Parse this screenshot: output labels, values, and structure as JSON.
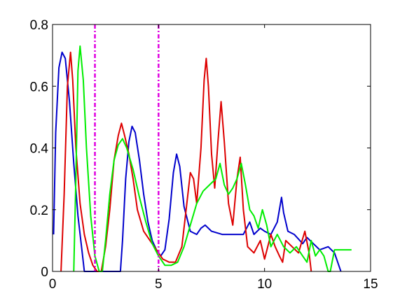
{
  "chart_data": {
    "type": "line",
    "xlim": [
      0,
      15
    ],
    "ylim": [
      0,
      0.8
    ],
    "xticks": [
      0,
      5,
      10,
      15
    ],
    "yticks": [
      0,
      0.2,
      0.4,
      0.6,
      0.8
    ],
    "xtick_labels": [
      "0",
      "5",
      "10",
      "15"
    ],
    "ytick_labels": [
      "0",
      "0.2",
      "0.4",
      "0.6",
      "0.8"
    ],
    "ytick_side": "both",
    "grid": false,
    "legend": "none",
    "vertical_markers": [
      {
        "x": 2,
        "color": "#e000e0",
        "style": "dash-dot"
      },
      {
        "x": 5,
        "color": "#e000e0",
        "style": "dash-dot"
      }
    ],
    "series": [
      {
        "color": "#0000cc",
        "points": [
          [
            0.05,
            0.12
          ],
          [
            0.15,
            0.45
          ],
          [
            0.3,
            0.66
          ],
          [
            0.45,
            0.71
          ],
          [
            0.6,
            0.69
          ],
          [
            0.8,
            0.55
          ],
          [
            1.0,
            0.35
          ],
          [
            1.2,
            0.18
          ],
          [
            1.4,
            0.06
          ],
          [
            1.5,
            0.0
          ],
          [
            3.2,
            0.0
          ],
          [
            3.3,
            0.1
          ],
          [
            3.45,
            0.3
          ],
          [
            3.6,
            0.42
          ],
          [
            3.75,
            0.47
          ],
          [
            3.9,
            0.45
          ],
          [
            4.1,
            0.36
          ],
          [
            4.3,
            0.25
          ],
          [
            4.5,
            0.16
          ],
          [
            4.7,
            0.1
          ],
          [
            4.9,
            0.07
          ],
          [
            5.1,
            0.05
          ],
          [
            5.3,
            0.07
          ],
          [
            5.5,
            0.17
          ],
          [
            5.7,
            0.32
          ],
          [
            5.85,
            0.38
          ],
          [
            6.0,
            0.34
          ],
          [
            6.2,
            0.21
          ],
          [
            6.5,
            0.13
          ],
          [
            6.8,
            0.12
          ],
          [
            7.0,
            0.14
          ],
          [
            7.2,
            0.15
          ],
          [
            7.5,
            0.13
          ],
          [
            8.0,
            0.12
          ],
          [
            8.5,
            0.12
          ],
          [
            9.0,
            0.12
          ],
          [
            9.3,
            0.16
          ],
          [
            9.5,
            0.12
          ],
          [
            9.8,
            0.14
          ],
          [
            10.0,
            0.13
          ],
          [
            10.3,
            0.12
          ],
          [
            10.6,
            0.16
          ],
          [
            10.8,
            0.24
          ],
          [
            10.9,
            0.19
          ],
          [
            11.1,
            0.13
          ],
          [
            11.4,
            0.12
          ],
          [
            11.8,
            0.09
          ],
          [
            12.0,
            0.11
          ],
          [
            12.3,
            0.09
          ],
          [
            12.6,
            0.07
          ],
          [
            13.0,
            0.08
          ],
          [
            13.3,
            0.06
          ],
          [
            13.6,
            0.0
          ]
        ]
      },
      {
        "color": "#dd0000",
        "points": [
          [
            0.4,
            0.0
          ],
          [
            0.55,
            0.25
          ],
          [
            0.7,
            0.6
          ],
          [
            0.85,
            0.71
          ],
          [
            0.95,
            0.62
          ],
          [
            1.1,
            0.4
          ],
          [
            1.3,
            0.22
          ],
          [
            1.5,
            0.12
          ],
          [
            1.7,
            0.06
          ],
          [
            1.9,
            0.02
          ],
          [
            2.1,
            0.0
          ],
          [
            2.3,
            0.0
          ],
          [
            2.5,
            0.08
          ],
          [
            2.7,
            0.2
          ],
          [
            2.9,
            0.36
          ],
          [
            3.1,
            0.44
          ],
          [
            3.25,
            0.48
          ],
          [
            3.4,
            0.44
          ],
          [
            3.6,
            0.38
          ],
          [
            3.8,
            0.3
          ],
          [
            4.0,
            0.2
          ],
          [
            4.3,
            0.13
          ],
          [
            4.6,
            0.1
          ],
          [
            4.9,
            0.07
          ],
          [
            5.2,
            0.04
          ],
          [
            5.5,
            0.03
          ],
          [
            5.8,
            0.03
          ],
          [
            6.1,
            0.08
          ],
          [
            6.3,
            0.2
          ],
          [
            6.5,
            0.32
          ],
          [
            6.65,
            0.3
          ],
          [
            6.8,
            0.22
          ],
          [
            7.0,
            0.4
          ],
          [
            7.15,
            0.62
          ],
          [
            7.25,
            0.69
          ],
          [
            7.35,
            0.6
          ],
          [
            7.5,
            0.38
          ],
          [
            7.65,
            0.27
          ],
          [
            7.8,
            0.42
          ],
          [
            7.95,
            0.55
          ],
          [
            8.1,
            0.42
          ],
          [
            8.3,
            0.22
          ],
          [
            8.5,
            0.15
          ],
          [
            8.7,
            0.3
          ],
          [
            8.85,
            0.37
          ],
          [
            9.0,
            0.2
          ],
          [
            9.2,
            0.08
          ],
          [
            9.5,
            0.06
          ],
          [
            9.8,
            0.1
          ],
          [
            10.0,
            0.04
          ],
          [
            10.3,
            0.12
          ],
          [
            10.5,
            0.08
          ],
          [
            10.7,
            0.05
          ],
          [
            10.85,
            0.03
          ],
          [
            11.0,
            0.1
          ],
          [
            11.3,
            0.08
          ],
          [
            11.6,
            0.06
          ],
          [
            11.9,
            0.13
          ],
          [
            12.1,
            0.06
          ],
          [
            12.2,
            0.0
          ]
        ]
      },
      {
        "color": "#00ee00",
        "points": [
          [
            1.0,
            0.0
          ],
          [
            1.1,
            0.3
          ],
          [
            1.2,
            0.65
          ],
          [
            1.3,
            0.73
          ],
          [
            1.45,
            0.62
          ],
          [
            1.6,
            0.4
          ],
          [
            1.8,
            0.18
          ],
          [
            2.0,
            0.05
          ],
          [
            2.2,
            0.0
          ],
          [
            2.35,
            0.0
          ],
          [
            2.5,
            0.1
          ],
          [
            2.7,
            0.25
          ],
          [
            2.9,
            0.36
          ],
          [
            3.1,
            0.41
          ],
          [
            3.3,
            0.43
          ],
          [
            3.5,
            0.4
          ],
          [
            3.8,
            0.33
          ],
          [
            4.1,
            0.24
          ],
          [
            4.4,
            0.16
          ],
          [
            4.7,
            0.09
          ],
          [
            5.0,
            0.05
          ],
          [
            5.3,
            0.02
          ],
          [
            5.6,
            0.02
          ],
          [
            5.9,
            0.03
          ],
          [
            6.2,
            0.08
          ],
          [
            6.5,
            0.15
          ],
          [
            6.8,
            0.22
          ],
          [
            7.1,
            0.26
          ],
          [
            7.4,
            0.28
          ],
          [
            7.7,
            0.3
          ],
          [
            7.9,
            0.35
          ],
          [
            8.1,
            0.28
          ],
          [
            8.3,
            0.25
          ],
          [
            8.5,
            0.27
          ],
          [
            8.7,
            0.3
          ],
          [
            8.9,
            0.35
          ],
          [
            9.1,
            0.28
          ],
          [
            9.3,
            0.2
          ],
          [
            9.5,
            0.18
          ],
          [
            9.7,
            0.14
          ],
          [
            9.9,
            0.2
          ],
          [
            10.1,
            0.15
          ],
          [
            10.3,
            0.08
          ],
          [
            10.6,
            0.12
          ],
          [
            10.9,
            0.08
          ],
          [
            11.2,
            0.06
          ],
          [
            11.5,
            0.08
          ],
          [
            11.8,
            0.05
          ],
          [
            12.0,
            0.03
          ],
          [
            12.2,
            0.1
          ],
          [
            12.4,
            0.05
          ],
          [
            12.6,
            0.07
          ],
          [
            12.8,
            0.05
          ],
          [
            13.0,
            0.0
          ],
          [
            13.1,
            0.0
          ],
          [
            13.3,
            0.07
          ],
          [
            13.5,
            0.07
          ],
          [
            13.8,
            0.07
          ],
          [
            14.1,
            0.07
          ]
        ]
      }
    ]
  }
}
